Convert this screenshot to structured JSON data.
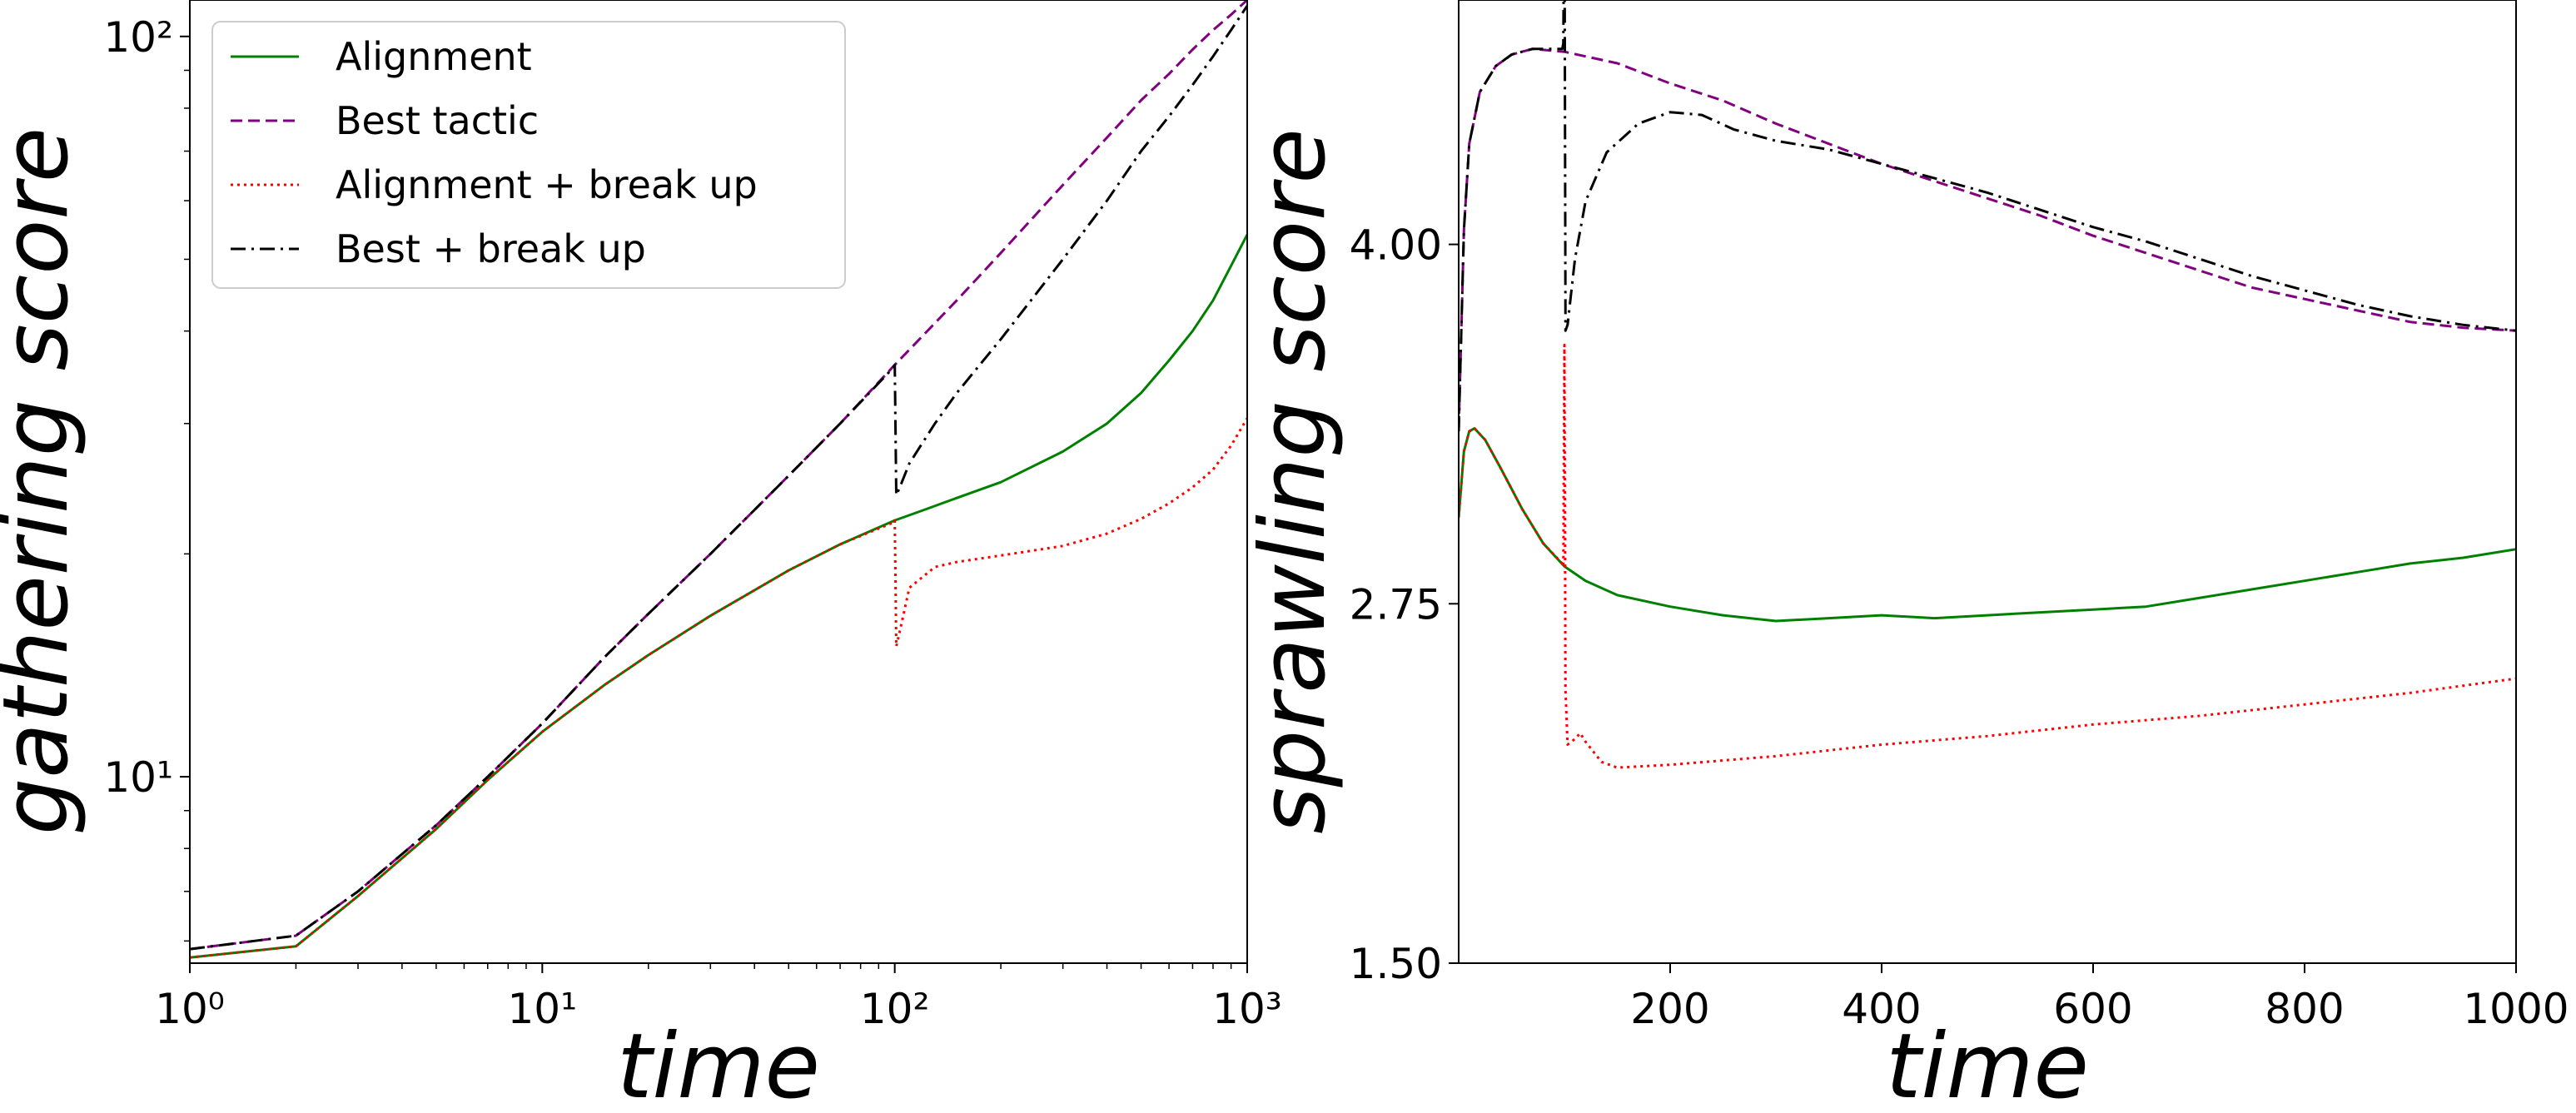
{
  "chart_data": [
    {
      "type": "line",
      "xscale": "log",
      "yscale": "log",
      "xlabel": "time",
      "ylabel": "gathering score",
      "xlim": [
        1,
        1000
      ],
      "ylim": [
        5.6,
        112
      ],
      "xticks": [
        {
          "value": 1,
          "label": "10⁰"
        },
        {
          "value": 10,
          "label": "10¹"
        },
        {
          "value": 100,
          "label": "10²"
        },
        {
          "value": 1000,
          "label": "10³"
        }
      ],
      "yticks": [
        {
          "value": 10,
          "label": "10¹"
        },
        {
          "value": 100,
          "label": "10²"
        }
      ],
      "legend_position": "top-left",
      "series": [
        {
          "name": "Alignment",
          "color": "#008000",
          "dash": "solid",
          "points": [
            [
              1,
              5.7
            ],
            [
              2,
              5.9
            ],
            [
              3,
              6.9
            ],
            [
              5,
              8.5
            ],
            [
              7,
              9.9
            ],
            [
              10,
              11.5
            ],
            [
              15,
              13.3
            ],
            [
              20,
              14.6
            ],
            [
              30,
              16.5
            ],
            [
              50,
              19.0
            ],
            [
              70,
              20.6
            ],
            [
              100,
              22.2
            ],
            [
              120,
              22.9
            ],
            [
              150,
              23.8
            ],
            [
              200,
              25.0
            ],
            [
              300,
              27.5
            ],
            [
              400,
              30.0
            ],
            [
              500,
              33.0
            ],
            [
              600,
              36.5
            ],
            [
              700,
              40.0
            ],
            [
              800,
              44.0
            ],
            [
              900,
              49.0
            ],
            [
              1000,
              54.0
            ]
          ]
        },
        {
          "name": "Best tactic",
          "color": "#800080",
          "dash": "dashed",
          "points": [
            [
              1,
              5.85
            ],
            [
              2,
              6.1
            ],
            [
              3,
              7.0
            ],
            [
              5,
              8.6
            ],
            [
              7,
              10.0
            ],
            [
              10,
              11.8
            ],
            [
              15,
              14.5
            ],
            [
              20,
              16.6
            ],
            [
              30,
              20.0
            ],
            [
              50,
              25.5
            ],
            [
              70,
              30.0
            ],
            [
              100,
              36.0
            ],
            [
              150,
              44.0
            ],
            [
              200,
              51.0
            ],
            [
              300,
              63.0
            ],
            [
              400,
              73.0
            ],
            [
              500,
              82.0
            ],
            [
              600,
              89.0
            ],
            [
              700,
              96.0
            ],
            [
              800,
              102.0
            ],
            [
              900,
              107.0
            ],
            [
              1000,
              112.0
            ]
          ]
        },
        {
          "name": "Alignment + break up",
          "color": "#ff0000",
          "dash": "dotted",
          "points": [
            [
              1,
              5.7
            ],
            [
              2,
              5.9
            ],
            [
              3,
              6.9
            ],
            [
              5,
              8.5
            ],
            [
              7,
              9.9
            ],
            [
              10,
              11.5
            ],
            [
              15,
              13.3
            ],
            [
              20,
              14.6
            ],
            [
              30,
              16.5
            ],
            [
              50,
              19.0
            ],
            [
              70,
              20.6
            ],
            [
              98,
              22.0
            ],
            [
              100,
              22.2
            ],
            [
              101,
              15.0
            ],
            [
              103,
              15.6
            ],
            [
              110,
              18.0
            ],
            [
              130,
              19.2
            ],
            [
              150,
              19.5
            ],
            [
              200,
              19.9
            ],
            [
              300,
              20.5
            ],
            [
              400,
              21.3
            ],
            [
              500,
              22.3
            ],
            [
              600,
              23.4
            ],
            [
              700,
              24.6
            ],
            [
              800,
              26.0
            ],
            [
              900,
              28.0
            ],
            [
              1000,
              30.5
            ]
          ]
        },
        {
          "name": "Best + break up",
          "color": "#000000",
          "dash": "dashdot",
          "points": [
            [
              1,
              5.85
            ],
            [
              2,
              6.1
            ],
            [
              3,
              7.0
            ],
            [
              5,
              8.6
            ],
            [
              7,
              10.0
            ],
            [
              10,
              11.8
            ],
            [
              15,
              14.5
            ],
            [
              20,
              16.6
            ],
            [
              30,
              20.0
            ],
            [
              50,
              25.5
            ],
            [
              70,
              30.0
            ],
            [
              98,
              35.5
            ],
            [
              100,
              36.0
            ],
            [
              101,
              24.0
            ],
            [
              103,
              24.5
            ],
            [
              110,
              26.5
            ],
            [
              130,
              30.0
            ],
            [
              150,
              33.0
            ],
            [
              200,
              39.0
            ],
            [
              300,
              50.0
            ],
            [
              400,
              60.0
            ],
            [
              500,
              70.0
            ],
            [
              600,
              78.0
            ],
            [
              700,
              86.0
            ],
            [
              800,
              94.0
            ],
            [
              900,
              102.0
            ],
            [
              1000,
              110.0
            ]
          ]
        }
      ]
    },
    {
      "type": "line",
      "xscale": "linear",
      "yscale": "linear",
      "xlabel": "time",
      "ylabel": "sprawling score",
      "xlim": [
        0,
        1000
      ],
      "ylim": [
        1.5,
        4.85
      ],
      "xticks": [
        {
          "value": 200,
          "label": "200"
        },
        {
          "value": 400,
          "label": "400"
        },
        {
          "value": 600,
          "label": "600"
        },
        {
          "value": 800,
          "label": "800"
        },
        {
          "value": 1000,
          "label": "1000"
        }
      ],
      "yticks": [
        {
          "value": 1.5,
          "label": "1.50"
        },
        {
          "value": 2.75,
          "label": "2.75"
        },
        {
          "value": 4.0,
          "label": "4.00"
        }
      ],
      "series": [
        {
          "name": "Alignment",
          "color": "#008000",
          "dash": "solid",
          "points": [
            [
              0,
              3.05
            ],
            [
              5,
              3.28
            ],
            [
              10,
              3.35
            ],
            [
              15,
              3.36
            ],
            [
              25,
              3.32
            ],
            [
              40,
              3.22
            ],
            [
              60,
              3.08
            ],
            [
              80,
              2.96
            ],
            [
              100,
              2.88
            ],
            [
              120,
              2.83
            ],
            [
              150,
              2.78
            ],
            [
              200,
              2.74
            ],
            [
              250,
              2.71
            ],
            [
              300,
              2.69
            ],
            [
              350,
              2.7
            ],
            [
              400,
              2.71
            ],
            [
              450,
              2.7
            ],
            [
              500,
              2.71
            ],
            [
              550,
              2.72
            ],
            [
              600,
              2.73
            ],
            [
              650,
              2.74
            ],
            [
              700,
              2.77
            ],
            [
              750,
              2.8
            ],
            [
              800,
              2.83
            ],
            [
              850,
              2.86
            ],
            [
              900,
              2.89
            ],
            [
              950,
              2.91
            ],
            [
              1000,
              2.94
            ]
          ]
        },
        {
          "name": "Best tactic",
          "color": "#800080",
          "dash": "dashed",
          "points": [
            [
              0,
              3.35
            ],
            [
              5,
              4.05
            ],
            [
              10,
              4.35
            ],
            [
              20,
              4.53
            ],
            [
              35,
              4.62
            ],
            [
              50,
              4.66
            ],
            [
              70,
              4.68
            ],
            [
              100,
              4.67
            ],
            [
              150,
              4.63
            ],
            [
              200,
              4.56
            ],
            [
              250,
              4.5
            ],
            [
              300,
              4.42
            ],
            [
              350,
              4.35
            ],
            [
              400,
              4.28
            ],
            [
              450,
              4.22
            ],
            [
              500,
              4.16
            ],
            [
              550,
              4.1
            ],
            [
              600,
              4.03
            ],
            [
              650,
              3.97
            ],
            [
              700,
              3.91
            ],
            [
              750,
              3.85
            ],
            [
              800,
              3.81
            ],
            [
              850,
              3.77
            ],
            [
              900,
              3.73
            ],
            [
              950,
              3.71
            ],
            [
              1000,
              3.7
            ]
          ]
        },
        {
          "name": "Alignment + break up",
          "color": "#ff0000",
          "dash": "dotted",
          "points": [
            [
              0,
              3.05
            ],
            [
              5,
              3.28
            ],
            [
              10,
              3.35
            ],
            [
              15,
              3.36
            ],
            [
              25,
              3.32
            ],
            [
              40,
              3.22
            ],
            [
              60,
              3.08
            ],
            [
              80,
              2.96
            ],
            [
              98,
              2.89
            ],
            [
              99,
              2.88
            ],
            [
              100,
              3.65
            ],
            [
              101,
              2.45
            ],
            [
              103,
              2.26
            ],
            [
              110,
              2.28
            ],
            [
              115,
              2.3
            ],
            [
              120,
              2.27
            ],
            [
              135,
              2.2
            ],
            [
              150,
              2.18
            ],
            [
              200,
              2.19
            ],
            [
              300,
              2.22
            ],
            [
              400,
              2.26
            ],
            [
              500,
              2.29
            ],
            [
              600,
              2.33
            ],
            [
              700,
              2.36
            ],
            [
              800,
              2.4
            ],
            [
              900,
              2.44
            ],
            [
              1000,
              2.49
            ]
          ]
        },
        {
          "name": "Best + break up",
          "color": "#000000",
          "dash": "dashdot",
          "points": [
            [
              0,
              3.35
            ],
            [
              5,
              4.05
            ],
            [
              10,
              4.35
            ],
            [
              20,
              4.53
            ],
            [
              35,
              4.62
            ],
            [
              50,
              4.66
            ],
            [
              70,
              4.68
            ],
            [
              98,
              4.68
            ],
            [
              99,
              4.7
            ],
            [
              100,
              5.3
            ],
            [
              101,
              3.7
            ],
            [
              103,
              3.72
            ],
            [
              110,
              3.95
            ],
            [
              120,
              4.15
            ],
            [
              140,
              4.32
            ],
            [
              170,
              4.42
            ],
            [
              200,
              4.46
            ],
            [
              230,
              4.45
            ],
            [
              260,
              4.4
            ],
            [
              300,
              4.36
            ],
            [
              350,
              4.33
            ],
            [
              400,
              4.28
            ],
            [
              450,
              4.23
            ],
            [
              500,
              4.18
            ],
            [
              550,
              4.12
            ],
            [
              600,
              4.06
            ],
            [
              650,
              4.01
            ],
            [
              700,
              3.95
            ],
            [
              750,
              3.89
            ],
            [
              800,
              3.84
            ],
            [
              850,
              3.79
            ],
            [
              900,
              3.75
            ],
            [
              950,
              3.72
            ],
            [
              1000,
              3.7
            ]
          ]
        }
      ]
    }
  ]
}
